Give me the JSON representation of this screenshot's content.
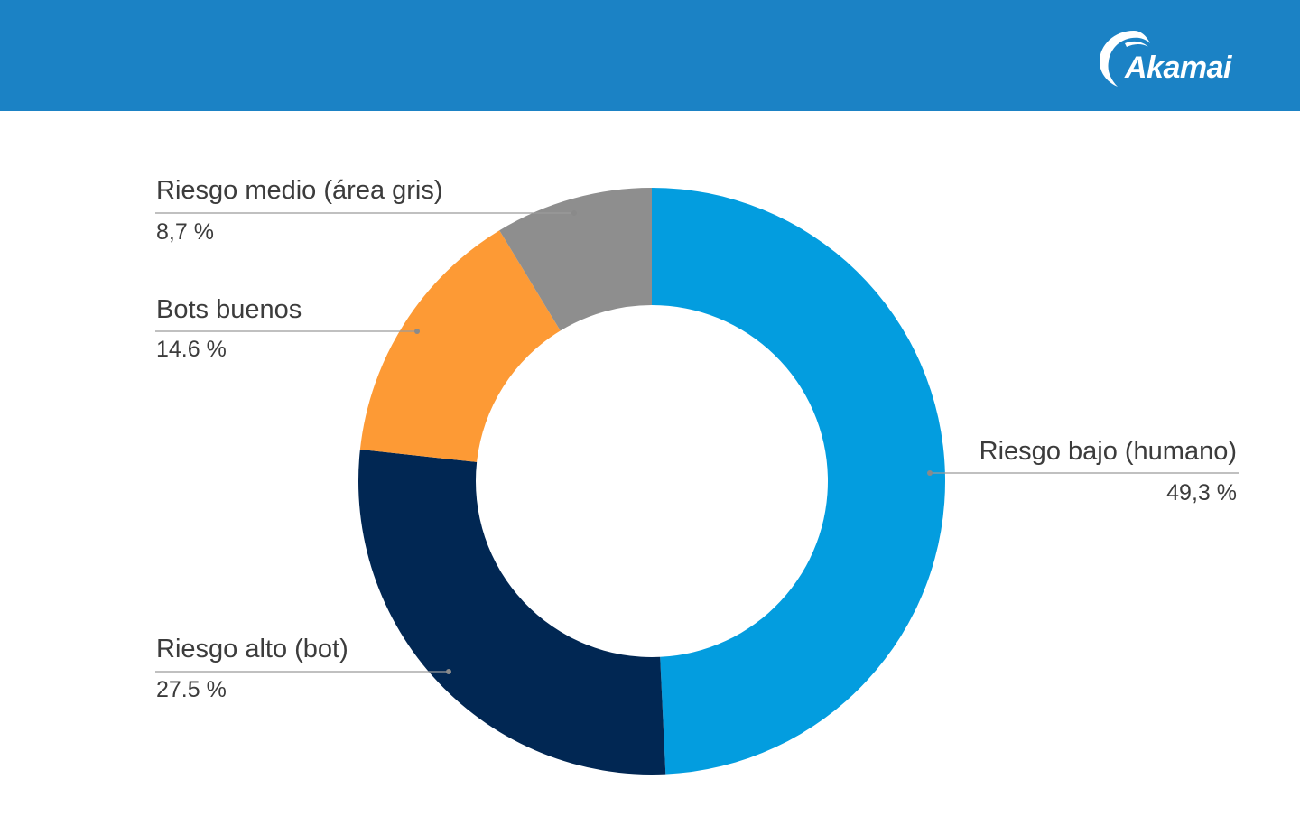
{
  "brand": {
    "name": "Akamai",
    "logo_icon": "akamai-wave-icon"
  },
  "chart_data": {
    "type": "pie",
    "donut": true,
    "title": "",
    "slices": [
      {
        "label": "Riesgo bajo (humano)",
        "value": 49.3,
        "display": "49,3 %",
        "color": "#039ddf"
      },
      {
        "label": "Riesgo alto (bot)",
        "value": 27.5,
        "display": "27.5 %",
        "color": "#012753"
      },
      {
        "label": "Bots buenos",
        "value": 14.6,
        "display": "14.6 %",
        "color": "#fd9a35"
      },
      {
        "label": "Riesgo medio (área gris)",
        "value": 8.7,
        "display": "8,7 %",
        "color": "#8e8e8e"
      }
    ],
    "legend": "callout-labels"
  }
}
